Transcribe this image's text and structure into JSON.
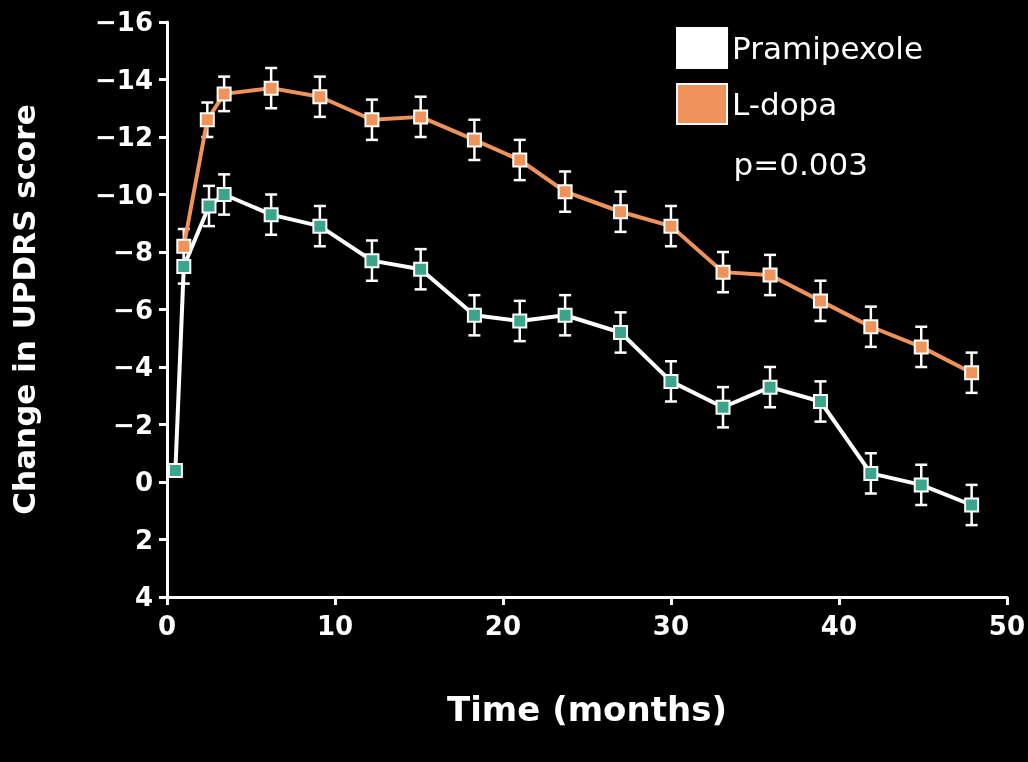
{
  "chart_data": {
    "type": "line",
    "xlabel": "Time (months)",
    "ylabel": "Change in UPDRS score",
    "xlim": [
      0,
      50
    ],
    "xticks": [
      0,
      10,
      20,
      30,
      40,
      50
    ],
    "ylim": [
      4,
      -16
    ],
    "yticks": [
      4,
      2,
      0,
      -2,
      -4,
      -6,
      -8,
      -10,
      -12,
      -14,
      -16
    ],
    "series": [
      {
        "name": "Pramipexole",
        "color": "#ffffff",
        "x": [
          0.5,
          1,
          2.5,
          3.4,
          6.2,
          9.1,
          12.2,
          15.1,
          18.3,
          21,
          23.7,
          27,
          30,
          33.1,
          35.9,
          38.9,
          41.9,
          44.9,
          47.9
        ],
        "values": [
          -0.4,
          -7.5,
          -9.6,
          -10,
          -9.3,
          -8.9,
          -7.7,
          -7.4,
          -5.8,
          -5.6,
          -5.8,
          -5.2,
          -3.5,
          -2.6,
          -3.3,
          -2.8,
          -0.3,
          0.1,
          0.8
        ],
        "errors": [
          null,
          0.6,
          0.7,
          0.7,
          0.7,
          0.7,
          0.7,
          0.7,
          0.7,
          0.7,
          0.7,
          0.7,
          0.7,
          0.7,
          0.7,
          0.7,
          0.7,
          0.7,
          0.7
        ]
      },
      {
        "name": "L-dopa",
        "color": "#f0935a",
        "x": [
          1,
          2.4,
          3.4,
          6.2,
          9.1,
          12.2,
          15.1,
          18.3,
          21,
          23.7,
          27,
          30,
          33.1,
          35.9,
          38.9,
          41.9,
          44.9,
          47.9
        ],
        "values": [
          -8.2,
          -12.6,
          -13.5,
          -13.7,
          -13.4,
          -12.6,
          -12.7,
          -11.9,
          -11.2,
          -10.1,
          -9.4,
          -8.9,
          -7.3,
          -7.2,
          -6.3,
          -5.4,
          -4.7,
          -3.8
        ],
        "errors": [
          0.6,
          0.6,
          0.6,
          0.7,
          0.7,
          0.7,
          0.7,
          0.7,
          0.7,
          0.7,
          0.7,
          0.7,
          0.7,
          0.7,
          0.7,
          0.7,
          0.7,
          0.7
        ]
      }
    ],
    "annotations": [
      "p=0.003"
    ],
    "legend": "top right",
    "marker": "square",
    "line_style": "solid",
    "grid": false
  }
}
